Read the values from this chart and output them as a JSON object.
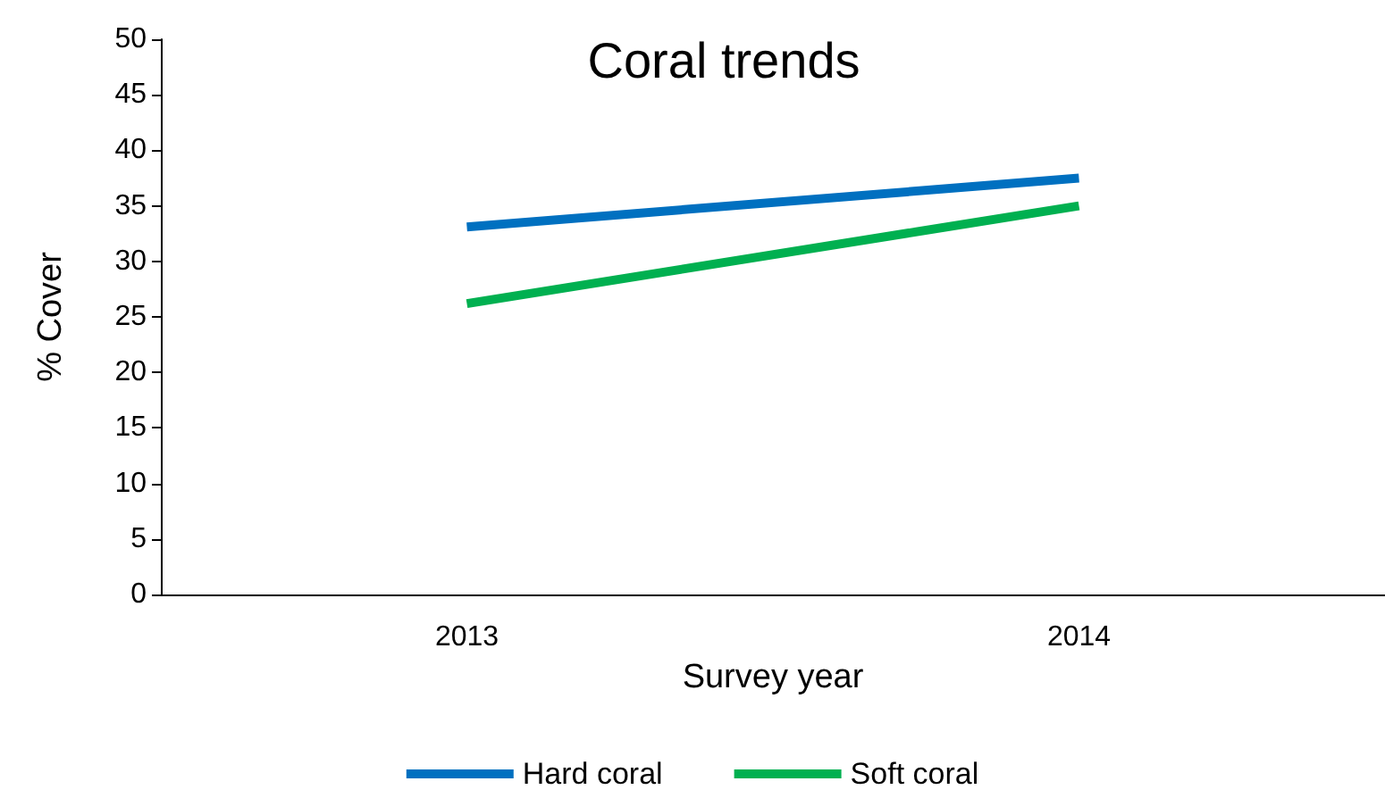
{
  "chart_data": {
    "type": "line",
    "title": "Coral trends",
    "xlabel": "Survey year",
    "ylabel": "% Cover",
    "categories": [
      "2013",
      "2014"
    ],
    "series": [
      {
        "name": "Hard coral",
        "color": "#0070c0",
        "values": [
          33.1,
          37.5
        ]
      },
      {
        "name": "Soft coral",
        "color": "#00b050",
        "values": [
          26.2,
          35
        ]
      }
    ],
    "ylim": [
      0,
      50
    ],
    "yticks": [
      0,
      5,
      10,
      15,
      20,
      25,
      30,
      35,
      40,
      45,
      50
    ],
    "grid": false,
    "legend": "bottom",
    "marker": "none",
    "line_style": "solid"
  }
}
